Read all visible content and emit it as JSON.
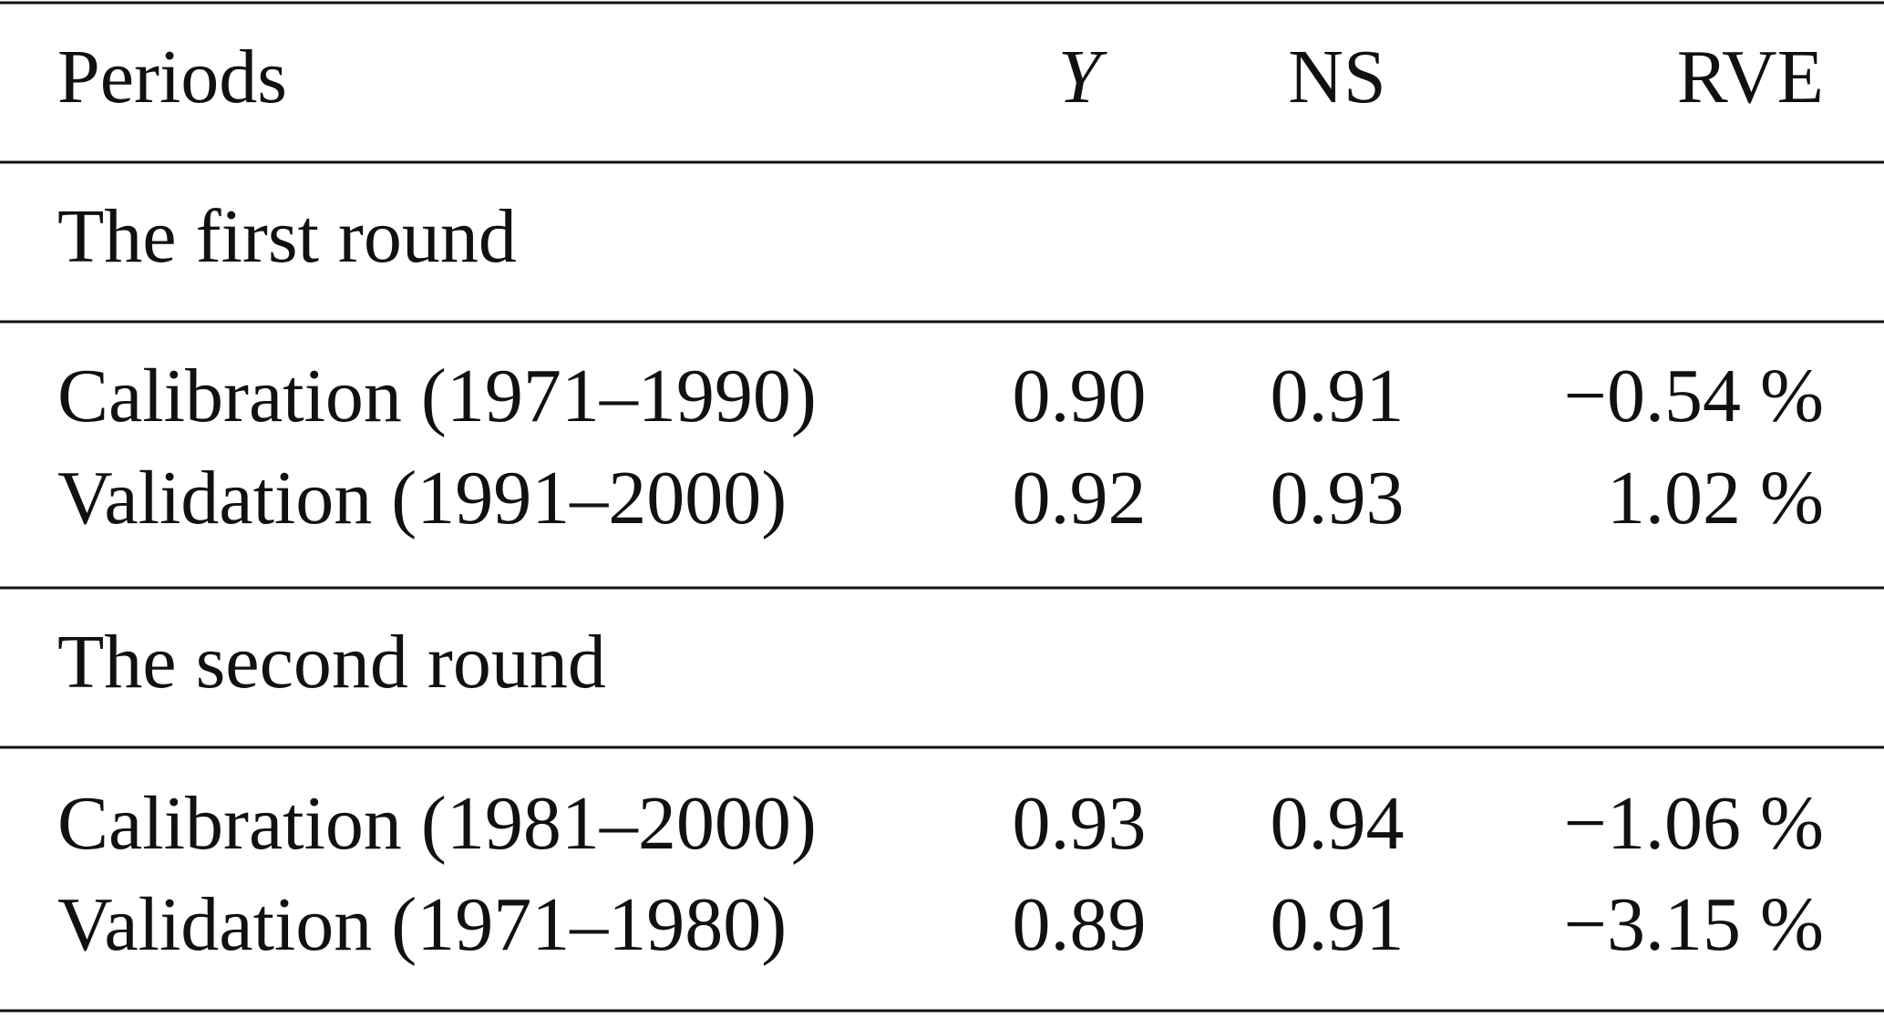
{
  "table": {
    "header": [
      "Periods",
      "Y",
      "NS",
      "RVE"
    ],
    "sections": [
      {
        "title": "The first round",
        "rows": [
          [
            "Calibration (1971–1990)",
            "0.90",
            "0.91",
            "−0.54 %"
          ],
          [
            "Validation (1991–2000)",
            "0.92",
            "0.93",
            "1.02 %"
          ]
        ]
      },
      {
        "title": "The second round",
        "rows": [
          [
            "Calibration (1981–2000)",
            "0.93",
            "0.94",
            "−1.06 %"
          ],
          [
            "Validation (1971–1980)",
            "0.89",
            "0.91",
            "−3.15 %"
          ]
        ]
      }
    ]
  }
}
